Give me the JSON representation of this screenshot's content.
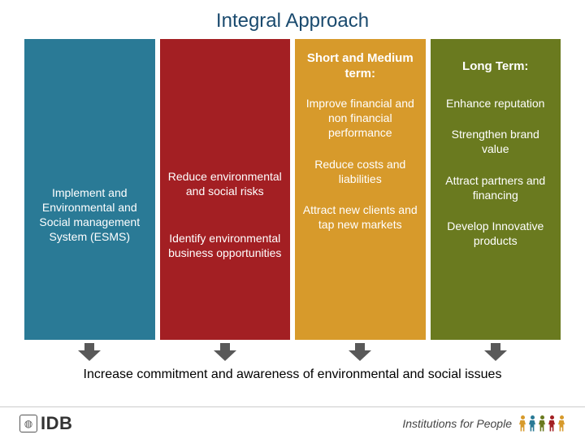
{
  "title": "Integral Approach",
  "columns": [
    {
      "color": "#2a7a96",
      "header": "",
      "items": [
        "Implement and Environmental and Social management System (ESMS)"
      ]
    },
    {
      "color": "#a31f23",
      "header": "",
      "items": [
        "Reduce environmental and social risks",
        "Identify environmental business opportunities"
      ]
    },
    {
      "color": "#d79a2b",
      "header": "Short and Medium term:",
      "items": [
        "Improve financial and non financial performance",
        "Reduce costs and liabilities",
        "Attract new clients and tap new markets"
      ]
    },
    {
      "color": "#6a7a1f",
      "header": "Long Term:",
      "items": [
        "Enhance reputation",
        "Strengthen brand value",
        "Attract partners and financing",
        "Develop Innovative products"
      ]
    }
  ],
  "arrow_color": "#595959",
  "bottom_text": "Increase commitment and awareness of environmental and social issues",
  "footer": {
    "logo_text": "IDB",
    "tagline": "Institutions for People",
    "people_colors": [
      "#d79a2b",
      "#2a7a96",
      "#6a7a1f",
      "#a31f23",
      "#d79a2b"
    ]
  }
}
